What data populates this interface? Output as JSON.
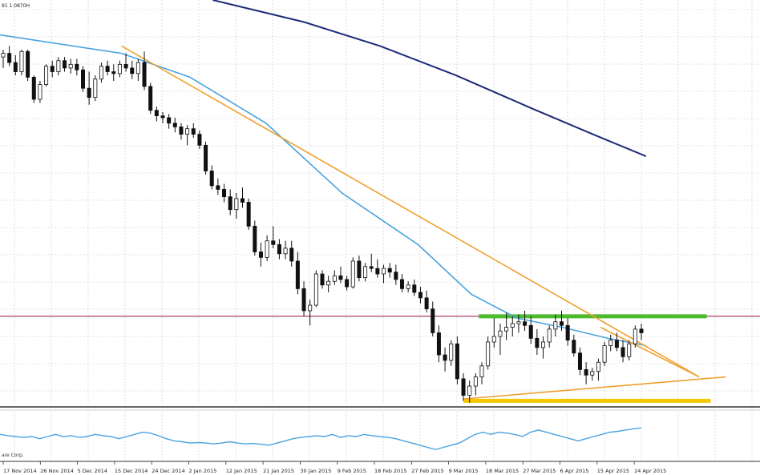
{
  "chart": {
    "header_text": "91 1.0870H",
    "copyright": "are Corp."
  },
  "chart_data": {
    "type": "candlestick",
    "title": "",
    "x_ticks": [
      "17 Nov 2014",
      "26 Nov 2014",
      "5 Dec 2014",
      "15 Dec 2014",
      "24 Dec 2014",
      "2 Jan 2015",
      "12 Jan 2015",
      "21 Jan 2015",
      "30 Jan 2015",
      "9 Feb 2015",
      "18 Feb 2015",
      "27 Feb 2015",
      "9 Mar 2015",
      "18 Mar 2015",
      "27 Mar 2015",
      "6 Apr 2015",
      "15 Apr 2015",
      "24 Apr 2015"
    ],
    "price_axis": {
      "top": 1.265,
      "bottom": 1.045
    },
    "grid": true,
    "candles": [
      [
        1.234,
        1.238,
        1.228,
        1.236
      ],
      [
        1.236,
        1.24,
        1.229,
        1.231
      ],
      [
        1.231,
        1.235,
        1.224,
        1.226
      ],
      [
        1.226,
        1.238,
        1.224,
        1.237
      ],
      [
        1.237,
        1.238,
        1.221,
        1.223
      ],
      [
        1.223,
        1.224,
        1.209,
        1.211
      ],
      [
        1.211,
        1.221,
        1.209,
        1.219
      ],
      [
        1.219,
        1.23,
        1.218,
        1.229
      ],
      [
        1.229,
        1.232,
        1.223,
        1.226
      ],
      [
        1.226,
        1.234,
        1.224,
        1.232
      ],
      [
        1.232,
        1.234,
        1.226,
        1.228
      ],
      [
        1.228,
        1.233,
        1.225,
        1.23
      ],
      [
        1.23,
        1.233,
        1.224,
        1.227
      ],
      [
        1.227,
        1.229,
        1.215,
        1.217
      ],
      [
        1.217,
        1.226,
        1.208,
        1.212
      ],
      [
        1.212,
        1.224,
        1.21,
        1.222
      ],
      [
        1.222,
        1.231,
        1.22,
        1.229
      ],
      [
        1.229,
        1.232,
        1.224,
        1.226
      ],
      [
        1.226,
        1.23,
        1.221,
        1.225
      ],
      [
        1.225,
        1.232,
        1.223,
        1.23
      ],
      [
        1.23,
        1.236,
        1.226,
        1.228
      ],
      [
        1.228,
        1.232,
        1.222,
        1.225
      ],
      [
        1.225,
        1.233,
        1.221,
        1.231
      ],
      [
        1.231,
        1.237,
        1.216,
        1.218
      ],
      [
        1.218,
        1.22,
        1.203,
        1.205
      ],
      [
        1.205,
        1.207,
        1.199,
        1.202
      ],
      [
        1.202,
        1.204,
        1.198,
        1.201
      ],
      [
        1.201,
        1.203,
        1.195,
        1.198
      ],
      [
        1.198,
        1.201,
        1.193,
        1.196
      ],
      [
        1.196,
        1.198,
        1.189,
        1.192
      ],
      [
        1.192,
        1.197,
        1.186,
        1.195
      ],
      [
        1.195,
        1.198,
        1.19,
        1.192
      ],
      [
        1.192,
        1.194,
        1.184,
        1.186
      ],
      [
        1.186,
        1.188,
        1.17,
        1.172
      ],
      [
        1.172,
        1.175,
        1.162,
        1.164
      ],
      [
        1.164,
        1.168,
        1.159,
        1.162
      ],
      [
        1.162,
        1.165,
        1.155,
        1.158
      ],
      [
        1.158,
        1.162,
        1.148,
        1.151
      ],
      [
        1.151,
        1.16,
        1.146,
        1.157
      ],
      [
        1.157,
        1.163,
        1.152,
        1.155
      ],
      [
        1.155,
        1.157,
        1.14,
        1.142
      ],
      [
        1.142,
        1.145,
        1.126,
        1.128
      ],
      [
        1.128,
        1.133,
        1.12,
        1.125
      ],
      [
        1.125,
        1.137,
        1.123,
        1.134
      ],
      [
        1.134,
        1.142,
        1.13,
        1.132
      ],
      [
        1.132,
        1.135,
        1.124,
        1.127
      ],
      [
        1.127,
        1.134,
        1.124,
        1.13
      ],
      [
        1.13,
        1.134,
        1.12,
        1.123
      ],
      [
        1.123,
        1.128,
        1.105,
        1.108
      ],
      [
        1.108,
        1.112,
        1.093,
        1.096
      ],
      [
        1.096,
        1.102,
        1.088,
        1.099
      ],
      [
        1.099,
        1.118,
        1.098,
        1.116
      ],
      [
        1.116,
        1.118,
        1.108,
        1.11
      ],
      [
        1.11,
        1.115,
        1.106,
        1.112
      ],
      [
        1.112,
        1.118,
        1.11,
        1.115
      ],
      [
        1.115,
        1.12,
        1.111,
        1.113
      ],
      [
        1.113,
        1.115,
        1.107,
        1.109
      ],
      [
        1.109,
        1.125,
        1.108,
        1.123
      ],
      [
        1.123,
        1.126,
        1.112,
        1.114
      ],
      [
        1.114,
        1.122,
        1.112,
        1.12
      ],
      [
        1.12,
        1.127,
        1.117,
        1.119
      ],
      [
        1.119,
        1.124,
        1.114,
        1.116
      ],
      [
        1.116,
        1.121,
        1.111,
        1.119
      ],
      [
        1.119,
        1.122,
        1.114,
        1.117
      ],
      [
        1.117,
        1.121,
        1.11,
        1.113
      ],
      [
        1.113,
        1.116,
        1.106,
        1.108
      ],
      [
        1.108,
        1.112,
        1.106,
        1.11
      ],
      [
        1.11,
        1.113,
        1.104,
        1.106
      ],
      [
        1.106,
        1.109,
        1.1,
        1.103
      ],
      [
        1.103,
        1.107,
        1.095,
        1.097
      ],
      [
        1.097,
        1.101,
        1.082,
        1.084
      ],
      [
        1.084,
        1.088,
        1.068,
        1.072
      ],
      [
        1.072,
        1.076,
        1.063,
        1.069
      ],
      [
        1.069,
        1.08,
        1.066,
        1.078
      ],
      [
        1.078,
        1.082,
        1.056,
        1.059
      ],
      [
        1.059,
        1.062,
        1.047,
        1.05
      ],
      [
        1.05,
        1.058,
        1.046,
        1.055
      ],
      [
        1.055,
        1.062,
        1.05,
        1.06
      ],
      [
        1.06,
        1.068,
        1.056,
        1.066
      ],
      [
        1.066,
        1.082,
        1.064,
        1.079
      ],
      [
        1.079,
        1.092,
        1.076,
        1.082
      ],
      [
        1.082,
        1.089,
        1.072,
        1.085
      ],
      [
        1.085,
        1.095,
        1.08,
        1.087
      ],
      [
        1.087,
        1.093,
        1.082,
        1.089
      ],
      [
        1.089,
        1.094,
        1.084,
        1.09
      ],
      [
        1.09,
        1.096,
        1.085,
        1.088
      ],
      [
        1.088,
        1.093,
        1.078,
        1.081
      ],
      [
        1.081,
        1.086,
        1.072,
        1.076
      ],
      [
        1.076,
        1.082,
        1.07,
        1.079
      ],
      [
        1.079,
        1.088,
        1.076,
        1.086
      ],
      [
        1.086,
        1.094,
        1.082,
        1.09
      ],
      [
        1.09,
        1.096,
        1.085,
        1.088
      ],
      [
        1.088,
        1.092,
        1.077,
        1.08
      ],
      [
        1.08,
        1.083,
        1.071,
        1.073
      ],
      [
        1.073,
        1.076,
        1.061,
        1.064
      ],
      [
        1.064,
        1.068,
        1.056,
        1.061
      ],
      [
        1.061,
        1.065,
        1.058,
        1.063
      ],
      [
        1.063,
        1.07,
        1.058,
        1.068
      ],
      [
        1.068,
        1.079,
        1.066,
        1.077
      ],
      [
        1.077,
        1.083,
        1.074,
        1.08
      ],
      [
        1.08,
        1.084,
        1.074,
        1.076
      ],
      [
        1.076,
        1.08,
        1.068,
        1.071
      ],
      [
        1.071,
        1.08,
        1.069,
        1.078
      ],
      [
        1.078,
        1.088,
        1.076,
        1.086
      ],
      [
        1.086,
        1.089,
        1.08,
        1.084
      ]
    ],
    "moving_averages": [
      {
        "color": "#4aa3df",
        "x": [
          0,
          0.16,
          0.25,
          0.35,
          0.45,
          0.55,
          0.62,
          0.68,
          0.74,
          0.8,
          0.85
        ],
        "y": [
          1.246,
          1.236,
          1.223,
          1.198,
          1.16,
          1.132,
          1.105,
          1.092,
          1.087,
          1.081,
          1.077
        ]
      },
      {
        "color": "#1e2a78",
        "x": [
          0.28,
          0.4,
          0.5,
          0.6,
          0.7,
          0.78,
          0.85
        ],
        "y": [
          1.265,
          1.253,
          1.24,
          1.224,
          1.206,
          1.192,
          1.18
        ]
      }
    ],
    "trend_lines": [
      {
        "color": "#f0a030",
        "x": [
          0.16,
          0.92
        ],
        "y": [
          1.24,
          1.06
        ]
      },
      {
        "color": "#f0a030",
        "x": [
          0.61,
          0.955
        ],
        "y": [
          1.048,
          1.06
        ]
      },
      {
        "color": "#f0a030",
        "x": [
          0.79,
          0.92
        ],
        "y": [
          1.087,
          1.06
        ]
      }
    ],
    "horizontal_levels": [
      {
        "color": "#a0285a",
        "y": 1.093
      },
      {
        "color": "#4cbb2e",
        "y": 1.093,
        "x_range": [
          0.63,
          0.93
        ]
      },
      {
        "color": "#f5c800",
        "y": 1.047,
        "x_range": [
          0.61,
          0.935
        ]
      }
    ],
    "oscillator": {
      "values": [
        0.55,
        0.52,
        0.5,
        0.48,
        0.5,
        0.45,
        0.5,
        0.55,
        0.5,
        0.52,
        0.48,
        0.5,
        0.55,
        0.52,
        0.5,
        0.45,
        0.5,
        0.55,
        0.6,
        0.58,
        0.52,
        0.45,
        0.4,
        0.38,
        0.35,
        0.36,
        0.35,
        0.33,
        0.35,
        0.38,
        0.35,
        0.33,
        0.34,
        0.32,
        0.3,
        0.35,
        0.4,
        0.45,
        0.48,
        0.5,
        0.52,
        0.5,
        0.55,
        0.48,
        0.52,
        0.5,
        0.55,
        0.52,
        0.5,
        0.48,
        0.45,
        0.4,
        0.35,
        0.3,
        0.25,
        0.2,
        0.25,
        0.3,
        0.35,
        0.45,
        0.55,
        0.6,
        0.55,
        0.6,
        0.58,
        0.55,
        0.5,
        0.6,
        0.65,
        0.6,
        0.55,
        0.5,
        0.45,
        0.4,
        0.45,
        0.5,
        0.55,
        0.6,
        0.62,
        0.65,
        0.68,
        0.7
      ]
    }
  }
}
